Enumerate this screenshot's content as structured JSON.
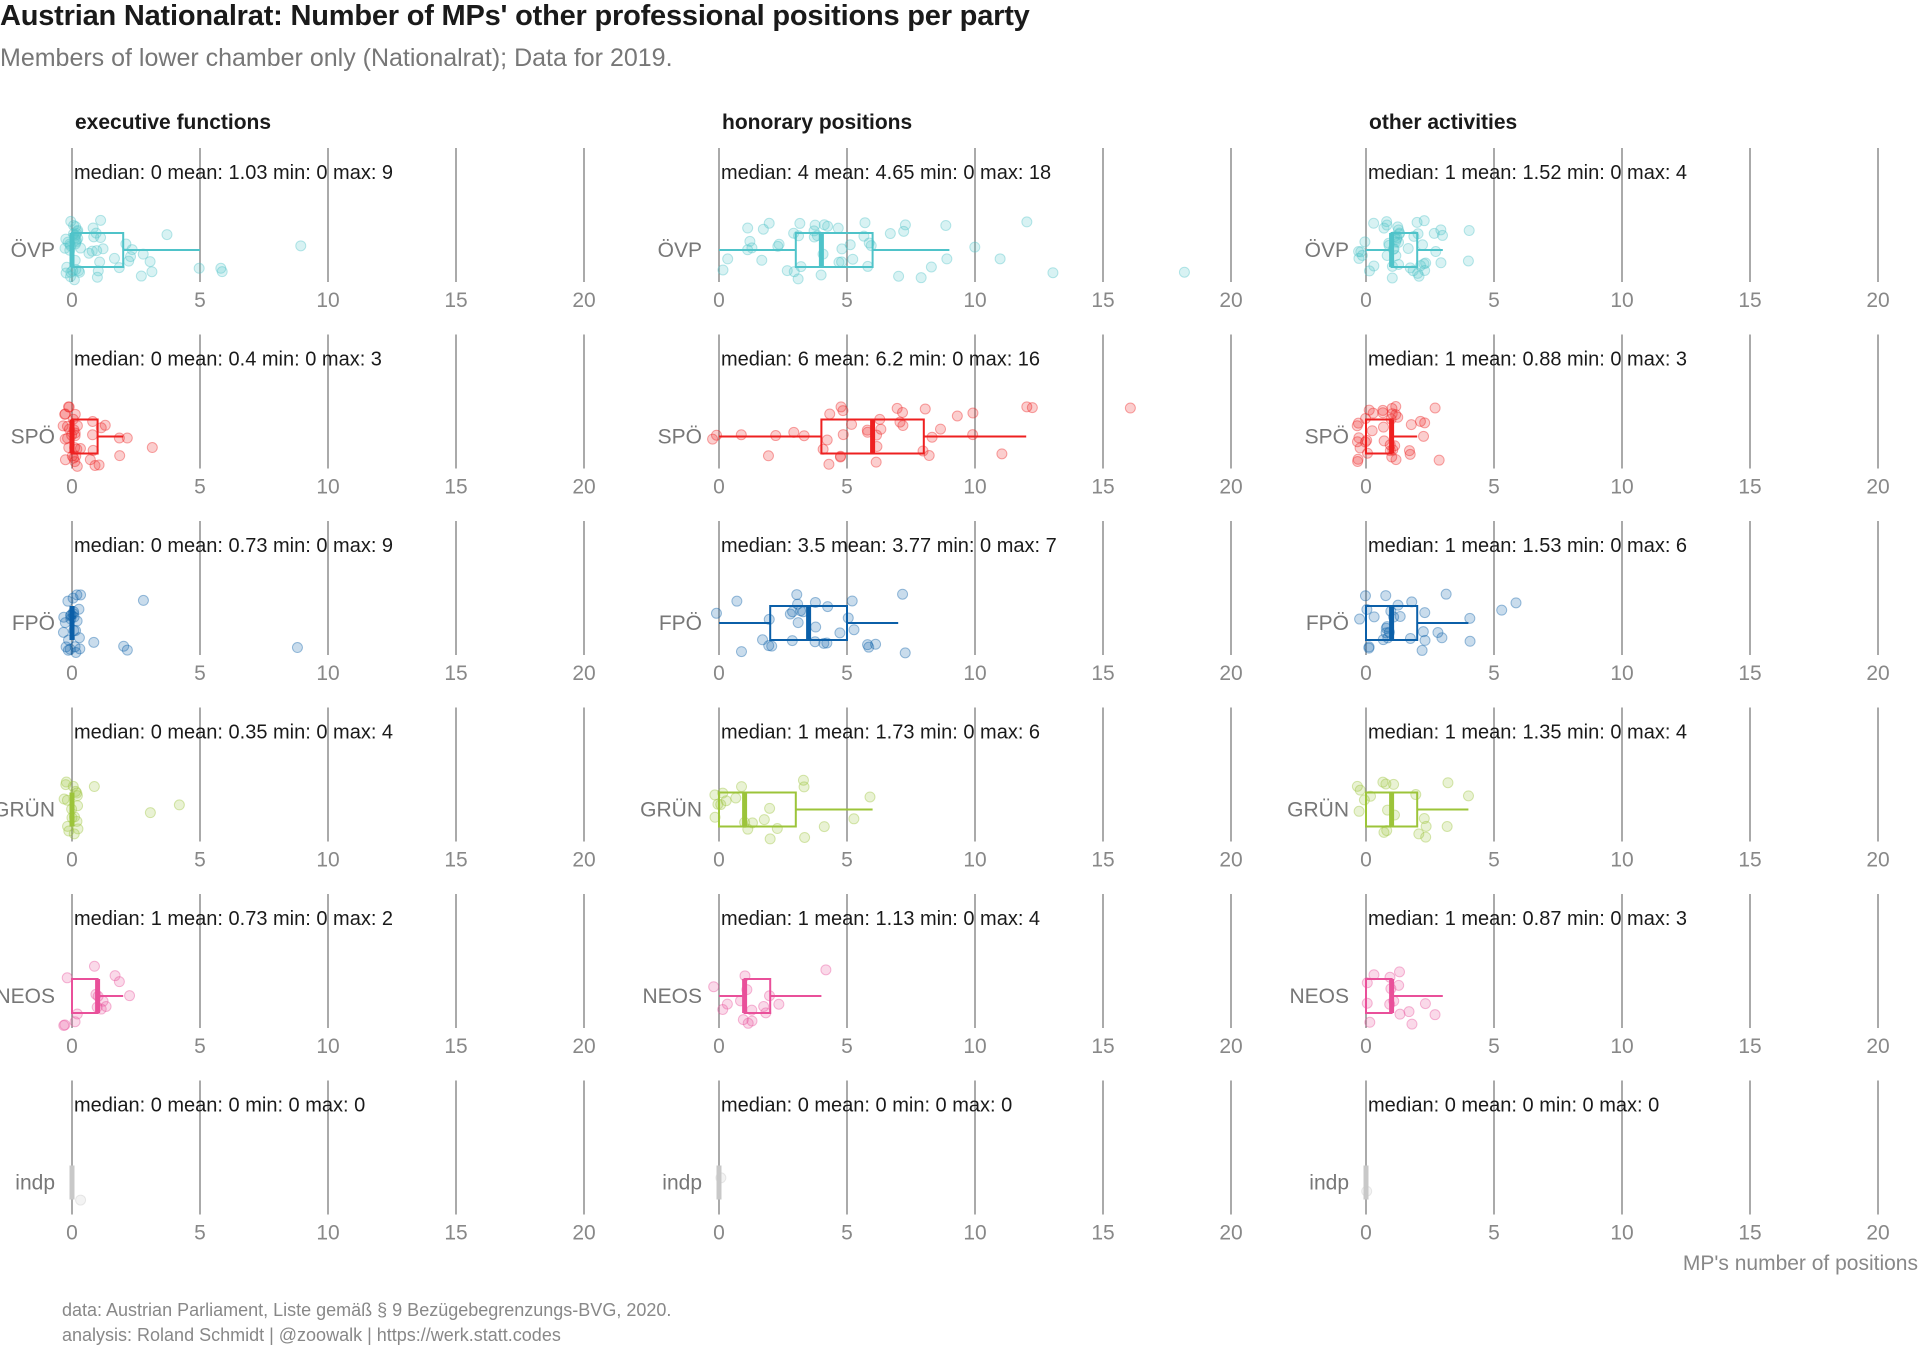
{
  "title": "Austrian Nationalrat: Number of MPs' other professional positions per party",
  "subtitle": "Members of lower chamber only (Nationalrat); Data for 2019.",
  "caption": {
    "line1": "data: Austrian Parliament, Liste gemäß § 9 Bezügebegrenzungs-BVG, 2020.",
    "line2": "analysis: Roland Schmidt | @zoowalk | https://werk.statt.codes"
  },
  "chart_data": {
    "type": "boxplot",
    "xlabel": "MP's number of positions",
    "xlim": [
      0,
      22
    ],
    "xticks": [
      0,
      5,
      10,
      15,
      20
    ],
    "facets": [
      "executive functions",
      "honorary positions",
      "other activities"
    ],
    "parties": [
      {
        "name": "ÖVP",
        "color": "#4fc3c9"
      },
      {
        "name": "SPÖ",
        "color": "#ee2020"
      },
      {
        "name": "FPÖ",
        "color": "#0b5fa8"
      },
      {
        "name": "GRÜN",
        "color": "#9cc43a"
      },
      {
        "name": "NEOS",
        "color": "#e9509a"
      },
      {
        "name": "indp",
        "color": "#c8c8c8"
      }
    ],
    "panels": [
      [
        {
          "median": 0,
          "mean": 1.03,
          "min": 0,
          "max": 9,
          "q1": 0,
          "q3": 2,
          "whisker_hi": 5,
          "text": "median: 0 mean: 1.03 min: 0 max: 9",
          "points": [
            0,
            0,
            0,
            0,
            0,
            0,
            0,
            0,
            0,
            0,
            0,
            0,
            0,
            0,
            0,
            0,
            0,
            0,
            0,
            0,
            0,
            0,
            0,
            0,
            0,
            0,
            0,
            0,
            0,
            0,
            1,
            1,
            1,
            1,
            1,
            1,
            1,
            1,
            1,
            1,
            1,
            1,
            2,
            2,
            2,
            2,
            2,
            2,
            3,
            3,
            3,
            3,
            4,
            5,
            6,
            6,
            9
          ]
        },
        {
          "median": 0,
          "mean": 0.4,
          "min": 0,
          "max": 3,
          "q1": 0,
          "q3": 1,
          "whisker_hi": 2,
          "text": "median: 0 mean: 0.4 min: 0 max: 3",
          "points": [
            0,
            0,
            0,
            0,
            0,
            0,
            0,
            0,
            0,
            0,
            0,
            0,
            0,
            0,
            0,
            0,
            0,
            0,
            0,
            0,
            0,
            0,
            0,
            0,
            0,
            0,
            1,
            1,
            1,
            1,
            1,
            1,
            1,
            1,
            2,
            2,
            2,
            3
          ]
        },
        {
          "median": 0,
          "mean": 0.73,
          "min": 0,
          "max": 9,
          "q1": 0,
          "q3": 0,
          "whisker_hi": 0,
          "text": "median: 0 mean: 0.73 min: 0 max: 9",
          "points": [
            0,
            0,
            0,
            0,
            0,
            0,
            0,
            0,
            0,
            0,
            0,
            0,
            0,
            0,
            0,
            0,
            0,
            0,
            0,
            0,
            0,
            0,
            0,
            0,
            0,
            1,
            2,
            2,
            3,
            9
          ]
        },
        {
          "median": 0,
          "mean": 0.35,
          "min": 0,
          "max": 4,
          "q1": 0,
          "q3": 0,
          "whisker_hi": 0,
          "text": "median: 0 mean: 0.35 min: 0 max: 4",
          "points": [
            0,
            0,
            0,
            0,
            0,
            0,
            0,
            0,
            0,
            0,
            0,
            0,
            0,
            0,
            0,
            0,
            0,
            1,
            3,
            4
          ]
        },
        {
          "median": 1,
          "mean": 0.73,
          "min": 0,
          "max": 2,
          "q1": 0,
          "q3": 1,
          "whisker_hi": 2,
          "text": "median: 1 mean: 0.73 min: 0 max: 2",
          "points": [
            0,
            0,
            0,
            0,
            1,
            1,
            1,
            1,
            1,
            2,
            2,
            2,
            1,
            0,
            1
          ]
        },
        {
          "median": 0,
          "mean": 0,
          "min": 0,
          "max": 0,
          "q1": 0,
          "q3": 0,
          "whisker_hi": 0,
          "text": "median: 0 mean: 0 min: 0 max: 0",
          "points": [
            0
          ]
        }
      ],
      [
        {
          "median": 4,
          "mean": 4.65,
          "min": 0,
          "max": 18,
          "q1": 3,
          "q3": 6,
          "whisker_hi": 9,
          "text": "median: 4 mean: 4.65 min: 0 max: 18",
          "points": [
            0,
            0,
            1,
            1,
            1,
            1,
            2,
            2,
            2,
            2,
            2,
            3,
            3,
            3,
            3,
            3,
            3,
            3,
            4,
            4,
            4,
            4,
            4,
            4,
            4,
            4,
            5,
            5,
            5,
            5,
            5,
            5,
            6,
            6,
            6,
            6,
            6,
            7,
            7,
            7,
            7,
            8,
            8,
            9,
            9,
            10,
            11,
            12,
            13,
            18
          ]
        },
        {
          "median": 6,
          "mean": 6.2,
          "min": 0,
          "max": 16,
          "q1": 4,
          "q3": 8,
          "whisker_hi": 12,
          "text": "median: 6 mean: 6.2 min: 0 max: 16",
          "points": [
            0,
            0,
            1,
            2,
            2,
            3,
            3,
            4,
            4,
            4,
            4,
            5,
            5,
            5,
            5,
            5,
            5,
            6,
            6,
            6,
            6,
            6,
            6,
            6,
            7,
            7,
            7,
            7,
            8,
            8,
            8,
            8,
            9,
            9,
            10,
            10,
            11,
            12,
            12,
            16
          ]
        },
        {
          "median": 3.5,
          "mean": 3.77,
          "min": 0,
          "max": 7,
          "q1": 2,
          "q3": 5,
          "whisker_hi": 7,
          "text": "median: 3.5 mean: 3.77 min: 0 max: 7",
          "points": [
            0,
            1,
            1,
            2,
            2,
            2,
            2,
            3,
            3,
            3,
            3,
            3,
            3,
            4,
            4,
            4,
            4,
            4,
            5,
            5,
            5,
            5,
            6,
            6,
            6,
            7,
            7,
            3,
            4,
            3
          ]
        },
        {
          "median": 1,
          "mean": 1.73,
          "min": 0,
          "max": 6,
          "q1": 0,
          "q3": 3,
          "whisker_hi": 6,
          "text": "median: 1 mean: 1.73 min: 0 max: 6",
          "points": [
            0,
            0,
            0,
            0,
            0,
            0,
            1,
            1,
            1,
            1,
            1,
            2,
            2,
            2,
            2,
            3,
            3,
            3,
            4,
            5,
            6
          ]
        },
        {
          "median": 1,
          "mean": 1.13,
          "min": 0,
          "max": 4,
          "q1": 1,
          "q3": 2,
          "whisker_hi": 4,
          "text": "median: 1 mean: 1.13 min: 0 max: 4",
          "points": [
            0,
            0,
            0,
            1,
            1,
            1,
            1,
            1,
            2,
            2,
            2,
            1,
            2,
            4,
            1
          ]
        },
        {
          "median": 0,
          "mean": 0,
          "min": 0,
          "max": 0,
          "q1": 0,
          "q3": 0,
          "whisker_hi": 0,
          "text": "median: 0 mean: 0 min: 0 max: 0",
          "points": [
            0
          ]
        }
      ],
      [
        {
          "median": 1,
          "mean": 1.52,
          "min": 0,
          "max": 4,
          "q1": 1,
          "q3": 2,
          "whisker_hi": 3,
          "text": "median: 1 mean: 1.52 min: 0 max: 4",
          "points": [
            0,
            0,
            0,
            0,
            0,
            0,
            0,
            1,
            1,
            1,
            1,
            1,
            1,
            1,
            1,
            1,
            1,
            1,
            1,
            1,
            1,
            1,
            1,
            1,
            1,
            2,
            2,
            2,
            2,
            2,
            2,
            2,
            2,
            2,
            2,
            2,
            2,
            3,
            3,
            3,
            3,
            3,
            4,
            4,
            1,
            1,
            2,
            0,
            1,
            2
          ]
        },
        {
          "median": 1,
          "mean": 0.88,
          "min": 0,
          "max": 3,
          "q1": 0,
          "q3": 1,
          "whisker_hi": 2,
          "text": "median: 1 mean: 0.88 min: 0 max: 3",
          "points": [
            0,
            0,
            0,
            0,
            0,
            0,
            0,
            0,
            0,
            0,
            0,
            0,
            1,
            1,
            1,
            1,
            1,
            1,
            1,
            1,
            1,
            1,
            1,
            1,
            1,
            1,
            1,
            2,
            2,
            2,
            2,
            2,
            2,
            3,
            3,
            0,
            1,
            0
          ]
        },
        {
          "median": 1,
          "mean": 1.53,
          "min": 0,
          "max": 6,
          "q1": 0,
          "q3": 2,
          "whisker_hi": 4,
          "text": "median: 1 mean: 1.53 min: 0 max: 6",
          "points": [
            0,
            0,
            0,
            0,
            0,
            1,
            1,
            1,
            1,
            1,
            1,
            1,
            1,
            1,
            2,
            2,
            2,
            2,
            2,
            3,
            3,
            3,
            4,
            4,
            5,
            6,
            1,
            2,
            0,
            1
          ]
        },
        {
          "median": 1,
          "mean": 1.35,
          "min": 0,
          "max": 4,
          "q1": 0,
          "q3": 2,
          "whisker_hi": 4,
          "text": "median: 1 mean: 1.35 min: 0 max: 4",
          "points": [
            0,
            0,
            0,
            0,
            0,
            1,
            1,
            1,
            1,
            1,
            1,
            2,
            2,
            2,
            2,
            2,
            3,
            3,
            4,
            1
          ]
        },
        {
          "median": 1,
          "mean": 0.87,
          "min": 0,
          "max": 3,
          "q1": 0,
          "q3": 1,
          "whisker_hi": 3,
          "text": "median: 1 mean: 0.87 min: 0 max: 3",
          "points": [
            0,
            0,
            0,
            0,
            1,
            1,
            1,
            1,
            1,
            1,
            2,
            2,
            2,
            3,
            1
          ]
        },
        {
          "median": 0,
          "mean": 0,
          "min": 0,
          "max": 0,
          "q1": 0,
          "q3": 0,
          "whisker_hi": 0,
          "text": "median: 0 mean: 0 min: 0 max: 0",
          "points": [
            0
          ]
        }
      ]
    ]
  }
}
